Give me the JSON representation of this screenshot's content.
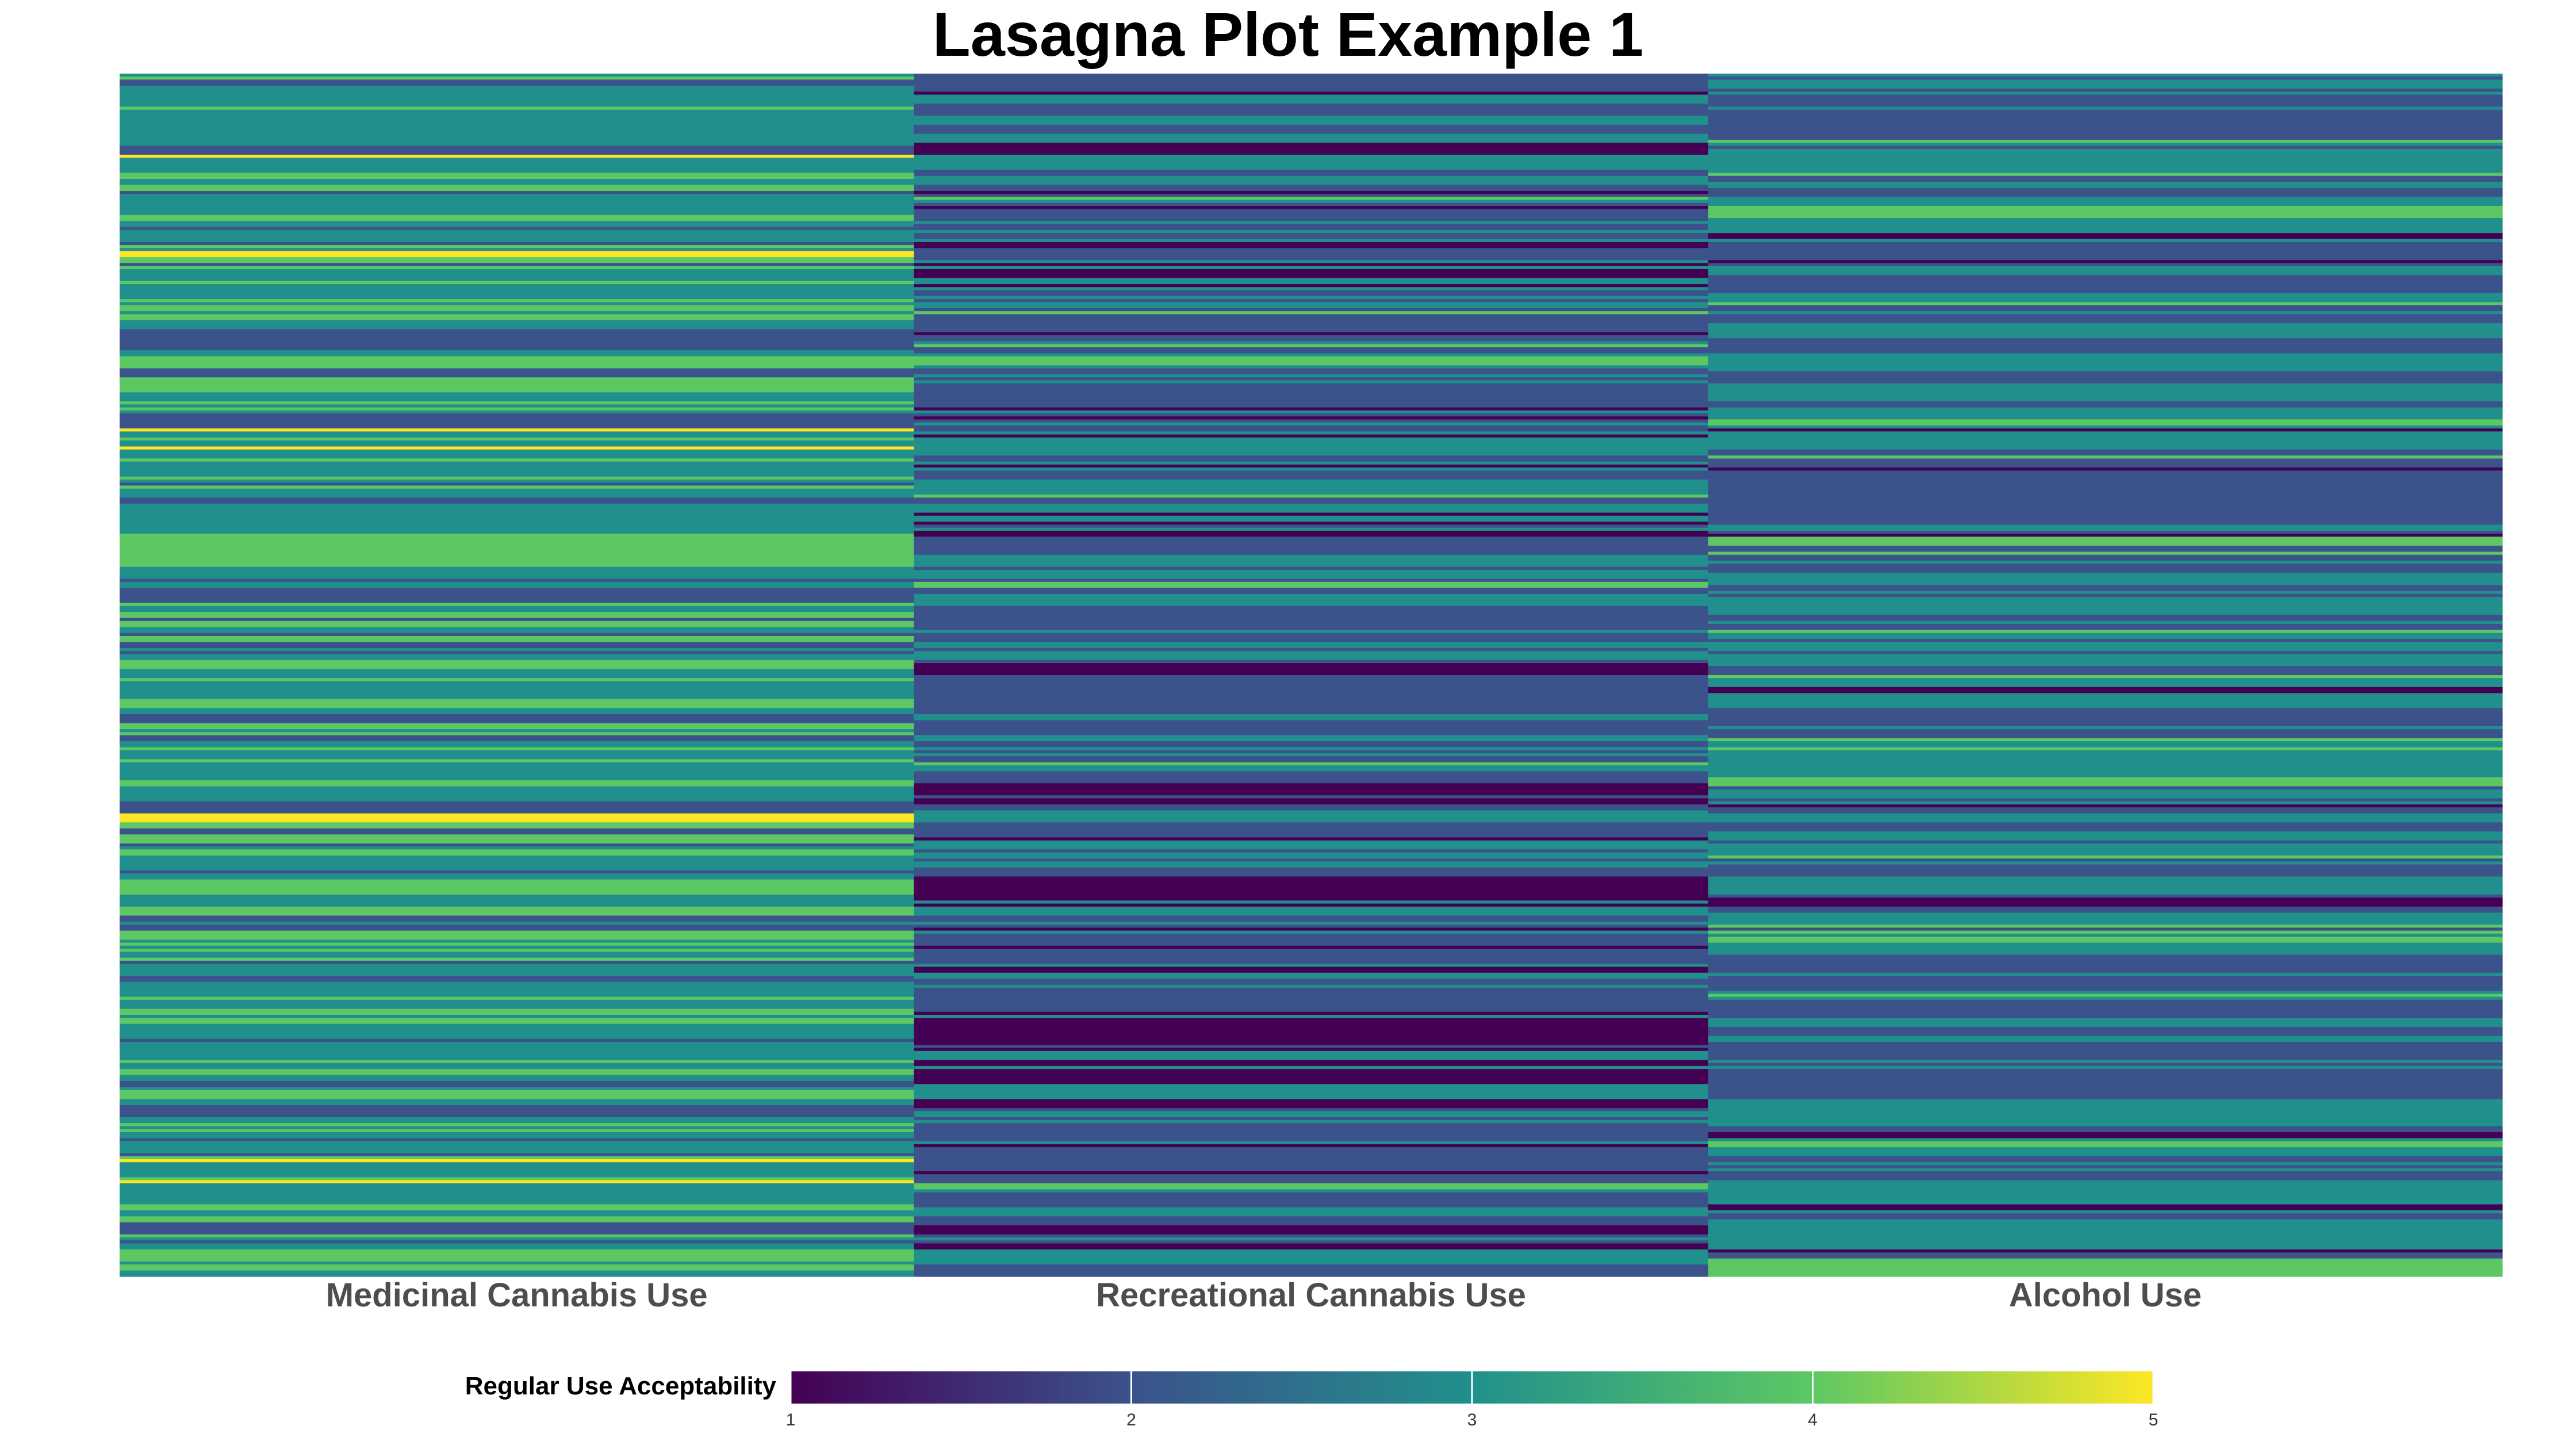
{
  "chart_data": {
    "type": "heatmap",
    "title": "Lasagna Plot Example 1",
    "columns": [
      "Medicinal Cannabis Use",
      "Recreational Cannabis Use",
      "Alcohol Use"
    ],
    "row_count": 400,
    "value_range": [
      1,
      5
    ],
    "row_values": {
      "pattern": "per-respondent ratings shown as horizontal stripes",
      "column_tendency": [
        3.2,
        2.2,
        2.6
      ]
    },
    "legend": {
      "title": "Regular Use Acceptability",
      "ticks": [
        1,
        2,
        3,
        4,
        5
      ],
      "placement": "bottom"
    },
    "colorscale": [
      "#440154",
      "#3b528b",
      "#21908c",
      "#5dc863",
      "#fde725"
    ]
  }
}
